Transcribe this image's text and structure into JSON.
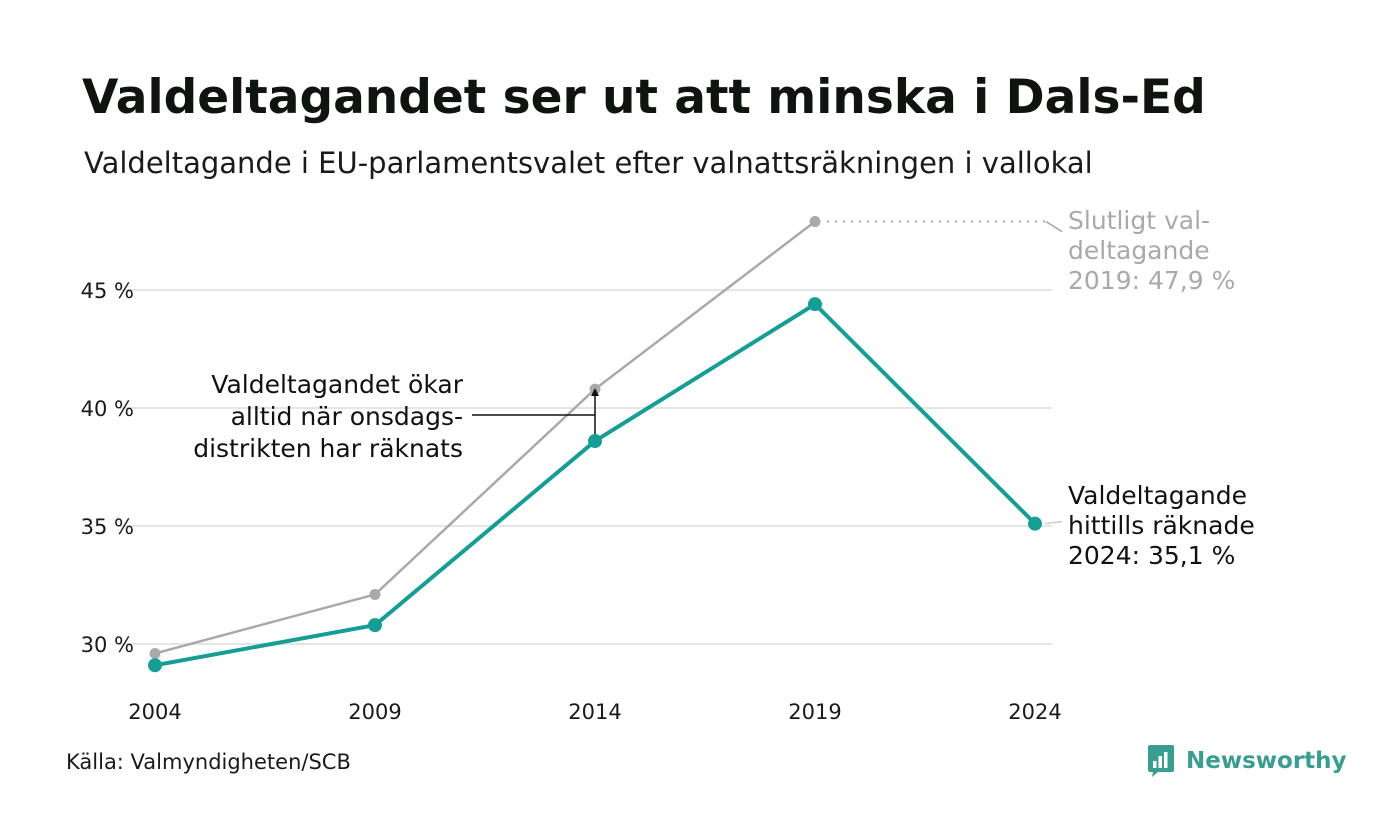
{
  "header": {
    "title": "Valdeltagandet ser ut att minska i Dals-Ed",
    "subtitle": "Valdeltagande i EU-parlamentsvalet efter valnattsräkningen i vallokal"
  },
  "footer": {
    "source": "Källa: Valmyndigheten/SCB",
    "brand": "Newsworthy",
    "brand_icon": "bar-chart-logo-icon"
  },
  "colors": {
    "counted": "#169e95",
    "final": "#a9a9a9",
    "grid": "#e5e5e5",
    "brand": "#3a9d90"
  },
  "chart_data": {
    "type": "line",
    "x": [
      2004,
      2009,
      2014,
      2019,
      2024
    ],
    "xticks": [
      "2004",
      "2009",
      "2014",
      "2019",
      "2024"
    ],
    "yticks": [
      "30 %",
      "35 %",
      "40 %",
      "45 %"
    ],
    "ytick_values": [
      30,
      35,
      40,
      45
    ],
    "ylim": [
      28.5,
      48.5
    ],
    "grid": true,
    "series": [
      {
        "key": "final",
        "values": [
          29.6,
          32.1,
          40.8,
          47.9,
          null
        ]
      },
      {
        "key": "counted",
        "values": [
          29.1,
          30.8,
          38.6,
          44.4,
          35.1
        ]
      }
    ],
    "annotations": {
      "final_2019": [
        "Slutligt val-",
        "deltagande",
        "2019: 47,9 %"
      ],
      "counted_2024": [
        "Valdeltagande",
        "hittills räknade",
        "2024: 35,1 %"
      ],
      "wednesday": [
        "Valdeltagandet ökar",
        "alltid när onsdags-",
        "distrikten har räknats"
      ]
    }
  }
}
